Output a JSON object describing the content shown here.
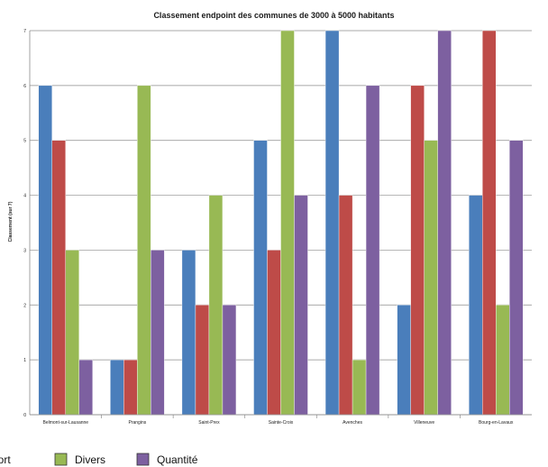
{
  "chart_data": {
    "type": "bar",
    "title": "Classement endpoint des communes de 3000 à 5000 habitants",
    "xlabel": "",
    "ylabel": "Classement (sur 7)",
    "ylim": [
      0,
      7
    ],
    "yticks": [
      "0",
      "1",
      "2",
      "3",
      "4",
      "5",
      "6",
      "7"
    ],
    "grid": true,
    "legend_position": "bottom",
    "categories": [
      "Belmont-sur-Lausanne",
      "Prangins",
      "Saint-Prex",
      "Sainte-Croix",
      "Avenches",
      "Villeneuve",
      "Bourg-en-Lavaux"
    ],
    "series": [
      {
        "name": "port",
        "color": "#4a7ebb",
        "values": [
          6,
          1,
          3,
          5,
          7,
          2,
          4
        ]
      },
      {
        "name": "",
        "color": "#be4b48",
        "values": [
          5,
          1,
          2,
          3,
          4,
          6,
          7
        ]
      },
      {
        "name": "Divers",
        "color": "#98b954",
        "values": [
          3,
          6,
          4,
          7,
          1,
          5,
          2
        ]
      },
      {
        "name": "Quantité",
        "color": "#7d60a0",
        "values": [
          1,
          3,
          2,
          4,
          6,
          7,
          5
        ]
      }
    ]
  }
}
